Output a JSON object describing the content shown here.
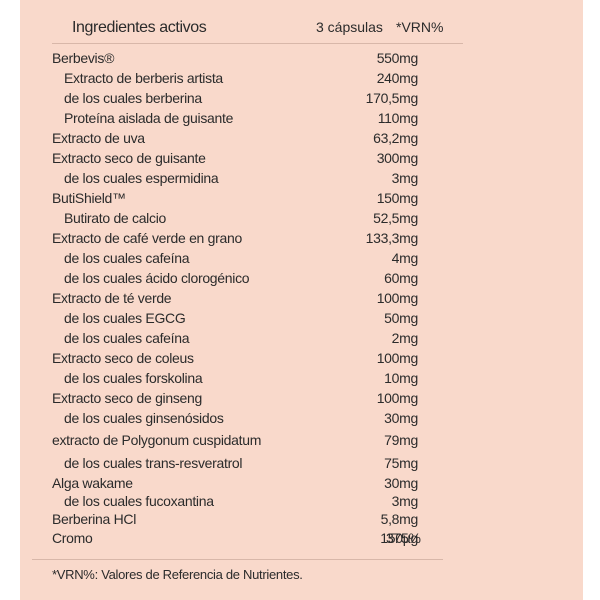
{
  "header": {
    "name": "Ingredientes activos",
    "qty": "3 cápsulas",
    "vrn": "*VRN%"
  },
  "rows": [
    {
      "name": "Berbevis®",
      "qty": "550mg",
      "level": 0
    },
    {
      "name": "Extracto de berberis artista",
      "qty": "240mg",
      "level": 1
    },
    {
      "name": "de los cuales berberina",
      "qty": "170,5mg",
      "level": 1
    },
    {
      "name": "Proteína aislada de guisante",
      "qty": "110mg",
      "level": 1
    },
    {
      "name": "Extracto de uva",
      "qty": "63,2mg",
      "level": 0
    },
    {
      "name": "Extracto seco de guisante",
      "qty": "300mg",
      "level": 0
    },
    {
      "name": "de los cuales espermidina",
      "qty": "3mg",
      "level": 1
    },
    {
      "name": "ButiShield™",
      "qty": "150mg",
      "level": 0
    },
    {
      "name": "Butirato de calcio",
      "qty": "52,5mg",
      "level": 1
    },
    {
      "name": "Extracto de café verde en grano",
      "qty": "133,3mg",
      "level": 0
    },
    {
      "name": "de los cuales cafeína",
      "qty": "4mg",
      "level": 1
    },
    {
      "name": "de los cuales ácido clorogénico",
      "qty": "60mg",
      "level": 1
    },
    {
      "name": "Extracto de té verde",
      "qty": "100mg",
      "level": 0
    },
    {
      "name": "de los cuales EGCG",
      "qty": "50mg",
      "level": 1
    },
    {
      "name": "de los cuales cafeína",
      "qty": "2mg",
      "level": 1
    },
    {
      "name": "Extracto seco de coleus",
      "qty": "100mg",
      "level": 0
    },
    {
      "name": "de los cuales forskolina",
      "qty": "10mg",
      "level": 1
    },
    {
      "name": "Extracto seco de ginseng",
      "qty": "100mg",
      "level": 0
    },
    {
      "name": "de los cuales ginsenósidos",
      "qty": "30mg",
      "level": 1
    },
    {
      "name": "extracto de Polygonum cuspidatum",
      "qty": "79mg",
      "level": 0
    },
    {
      "name": "de los cuales trans-resveratrol",
      "qty": "75mg",
      "level": 1
    },
    {
      "name": "Alga wakame",
      "qty": "30mg",
      "level": 0
    },
    {
      "name": "de los cuales fucoxantina",
      "qty": "3mg",
      "level": 1
    },
    {
      "name": "Berberina HCl",
      "qty": "5,8mg",
      "level": 0
    },
    {
      "name": "Cromo",
      "qty": "150µg",
      "vrn": "375%",
      "level": 0
    }
  ],
  "footer": "*VRN%: Valores de Referencia de Nutrientes.",
  "colors": {
    "panel": "#f9d9cb",
    "text": "#2b2b2b"
  }
}
